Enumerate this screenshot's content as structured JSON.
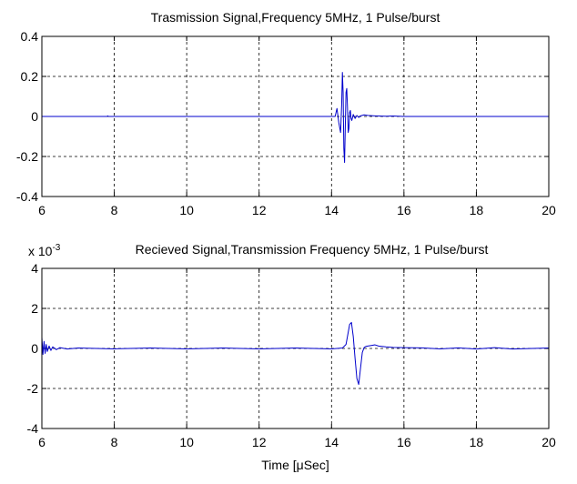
{
  "chart_data": [
    {
      "type": "line",
      "title": "Trasmission Signal,Frequency 5MHz, 1 Pulse/burst",
      "xlabel": "",
      "ylabel": "",
      "exponent_label": "",
      "xlim": [
        6,
        20
      ],
      "ylim": [
        -0.4,
        0.4
      ],
      "xticks": [
        6,
        8,
        10,
        12,
        14,
        16,
        18,
        20
      ],
      "xtick_labels": [
        "6",
        "8",
        "10",
        "12",
        "14",
        "16",
        "18",
        "20"
      ],
      "yticks": [
        -0.4,
        -0.2,
        0,
        0.2,
        0.4
      ],
      "ytick_labels": [
        "-0.4",
        "-0.2",
        "0",
        "0.2",
        "0.4"
      ],
      "grid": true,
      "line_color": "#0000cc",
      "series": [
        {
          "name": "",
          "x": [
            6,
            7.8,
            7.82,
            7.84,
            10,
            12,
            13.8,
            14.1,
            14.15,
            14.2,
            14.25,
            14.28,
            14.3,
            14.32,
            14.34,
            14.36,
            14.38,
            14.4,
            14.42,
            14.44,
            14.46,
            14.48,
            14.5,
            14.52,
            14.54,
            14.56,
            14.6,
            14.65,
            14.7,
            14.75,
            14.8,
            14.9,
            15.0,
            15.2,
            15.5,
            15.7,
            16,
            18,
            20
          ],
          "y": [
            0,
            0,
            0.003,
            0,
            0,
            0,
            0,
            0,
            0.04,
            -0.03,
            -0.08,
            0.06,
            0.22,
            0.12,
            -0.16,
            -0.23,
            -0.05,
            0.12,
            0.14,
            0.05,
            -0.08,
            -0.06,
            0.02,
            0.03,
            -0.01,
            -0.02,
            0.01,
            -0.01,
            0.005,
            -0.005,
            0.003,
            0.008,
            0.005,
            0.003,
            0.001,
            0.002,
            0,
            0,
            0
          ]
        }
      ]
    },
    {
      "type": "line",
      "title": "Recieved Signal,Transmission Frequency 5MHz, 1 Pulse/burst",
      "xlabel": "Time [μSec]",
      "ylabel": "",
      "exponent_label": "x 10",
      "exponent_power": "-3",
      "xlim": [
        6,
        20
      ],
      "ylim": [
        -4,
        4
      ],
      "xticks": [
        6,
        8,
        10,
        12,
        14,
        16,
        18,
        20
      ],
      "xtick_labels": [
        "6",
        "8",
        "10",
        "12",
        "14",
        "16",
        "18",
        "20"
      ],
      "yticks": [
        -4,
        -2,
        0,
        2,
        4
      ],
      "ytick_labels": [
        "-4",
        "-2",
        "0",
        "2",
        "4"
      ],
      "grid": true,
      "line_color": "#0000cc",
      "series": [
        {
          "name": "",
          "x": [
            6,
            6.03,
            6.06,
            6.09,
            6.12,
            6.15,
            6.2,
            6.25,
            6.3,
            6.4,
            6.5,
            6.7,
            7,
            8,
            9,
            10,
            11,
            12,
            13,
            14,
            14.3,
            14.4,
            14.45,
            14.5,
            14.55,
            14.6,
            14.65,
            14.7,
            14.75,
            14.8,
            14.85,
            14.9,
            14.95,
            15.0,
            15.1,
            15.2,
            15.3,
            15.5,
            15.7,
            16,
            16.5,
            17,
            17.5,
            18,
            18.5,
            19,
            20
          ],
          "y": [
            0.55,
            -0.3,
            0.35,
            -0.25,
            0.2,
            -0.15,
            0.12,
            -0.1,
            0.08,
            -0.06,
            0.04,
            -0.03,
            0.02,
            -0.02,
            0.02,
            -0.02,
            0.02,
            -0.02,
            0.02,
            -0.02,
            0.02,
            0.2,
            0.7,
            1.2,
            1.3,
            0.6,
            -0.5,
            -1.5,
            -1.8,
            -1.0,
            -0.2,
            0.05,
            0.1,
            0.12,
            0.15,
            0.18,
            0.12,
            0.08,
            0.05,
            0.04,
            0.03,
            -0.02,
            0.03,
            -0.03,
            0.04,
            -0.03,
            0.02
          ]
        }
      ]
    }
  ]
}
